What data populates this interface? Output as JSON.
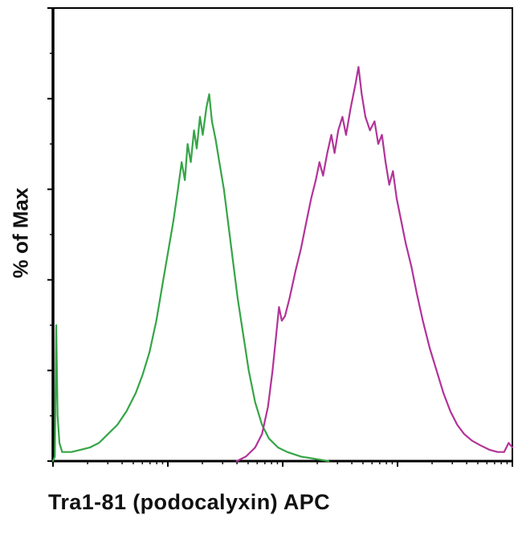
{
  "page": {
    "background_color": "#ffffff",
    "description": "flow cytometry overlay histogram"
  },
  "chart_data": {
    "type": "line",
    "subtype": "flow-cytometry-histogram-overlay",
    "title": "",
    "xlabel": "Tra1-81 (podocalyxin) APC",
    "ylabel": "% of Max",
    "grid": false,
    "legend": "none",
    "axis_color": "#000000",
    "x_axis": {
      "scale": "log",
      "decades": 4,
      "tick_labels_shown": false,
      "units": "relative position 0-1 across plot width"
    },
    "y_axis": {
      "range": [
        0,
        100
      ],
      "major_step": 20,
      "minor_step": 10,
      "tick_labels_shown": false,
      "units": "% of Max (percent of plot height)"
    },
    "series": [
      {
        "name": "green-histogram",
        "color": "#35a546",
        "stroke_width": 2.2,
        "points": [
          [
            0.0,
            0
          ],
          [
            0.004,
            1
          ],
          [
            0.007,
            30
          ],
          [
            0.01,
            10
          ],
          [
            0.014,
            4
          ],
          [
            0.02,
            2
          ],
          [
            0.04,
            2
          ],
          [
            0.06,
            2.5
          ],
          [
            0.08,
            3
          ],
          [
            0.1,
            4
          ],
          [
            0.12,
            6
          ],
          [
            0.14,
            8
          ],
          [
            0.16,
            11
          ],
          [
            0.18,
            15
          ],
          [
            0.195,
            19
          ],
          [
            0.21,
            24
          ],
          [
            0.225,
            31
          ],
          [
            0.24,
            40
          ],
          [
            0.252,
            47
          ],
          [
            0.262,
            53
          ],
          [
            0.272,
            60
          ],
          [
            0.28,
            66
          ],
          [
            0.287,
            62
          ],
          [
            0.293,
            70
          ],
          [
            0.3,
            66
          ],
          [
            0.307,
            73
          ],
          [
            0.313,
            69
          ],
          [
            0.32,
            76
          ],
          [
            0.326,
            72
          ],
          [
            0.334,
            78
          ],
          [
            0.34,
            81
          ],
          [
            0.346,
            75
          ],
          [
            0.354,
            71
          ],
          [
            0.362,
            66
          ],
          [
            0.372,
            60
          ],
          [
            0.382,
            52
          ],
          [
            0.392,
            44
          ],
          [
            0.402,
            36
          ],
          [
            0.414,
            28
          ],
          [
            0.426,
            20
          ],
          [
            0.44,
            13
          ],
          [
            0.455,
            8
          ],
          [
            0.47,
            5
          ],
          [
            0.49,
            3
          ],
          [
            0.51,
            2
          ],
          [
            0.54,
            1
          ],
          [
            0.57,
            0.5
          ],
          [
            0.6,
            0
          ]
        ]
      },
      {
        "name": "magenta-histogram",
        "color": "#b23399",
        "stroke_width": 2.2,
        "points": [
          [
            0.4,
            0
          ],
          [
            0.42,
            1
          ],
          [
            0.44,
            3
          ],
          [
            0.455,
            6
          ],
          [
            0.468,
            12
          ],
          [
            0.478,
            20
          ],
          [
            0.486,
            28
          ],
          [
            0.492,
            34
          ],
          [
            0.498,
            31
          ],
          [
            0.505,
            32
          ],
          [
            0.515,
            36
          ],
          [
            0.528,
            42
          ],
          [
            0.54,
            47
          ],
          [
            0.552,
            53
          ],
          [
            0.562,
            58
          ],
          [
            0.572,
            62
          ],
          [
            0.58,
            66
          ],
          [
            0.588,
            63
          ],
          [
            0.597,
            68
          ],
          [
            0.606,
            72
          ],
          [
            0.613,
            68
          ],
          [
            0.621,
            73
          ],
          [
            0.63,
            76
          ],
          [
            0.638,
            72
          ],
          [
            0.648,
            78
          ],
          [
            0.658,
            83
          ],
          [
            0.665,
            87
          ],
          [
            0.672,
            81
          ],
          [
            0.68,
            76
          ],
          [
            0.69,
            73
          ],
          [
            0.7,
            75
          ],
          [
            0.708,
            70
          ],
          [
            0.716,
            72
          ],
          [
            0.724,
            66
          ],
          [
            0.732,
            61
          ],
          [
            0.74,
            64
          ],
          [
            0.748,
            58
          ],
          [
            0.758,
            53
          ],
          [
            0.768,
            48
          ],
          [
            0.78,
            43
          ],
          [
            0.792,
            37
          ],
          [
            0.805,
            31
          ],
          [
            0.82,
            25
          ],
          [
            0.835,
            20
          ],
          [
            0.85,
            15
          ],
          [
            0.865,
            11
          ],
          [
            0.88,
            8
          ],
          [
            0.895,
            6
          ],
          [
            0.912,
            4.5
          ],
          [
            0.93,
            3.5
          ],
          [
            0.95,
            2.5
          ],
          [
            0.968,
            2
          ],
          [
            0.982,
            2
          ],
          [
            0.992,
            4
          ],
          [
            1.0,
            3
          ]
        ]
      }
    ]
  }
}
